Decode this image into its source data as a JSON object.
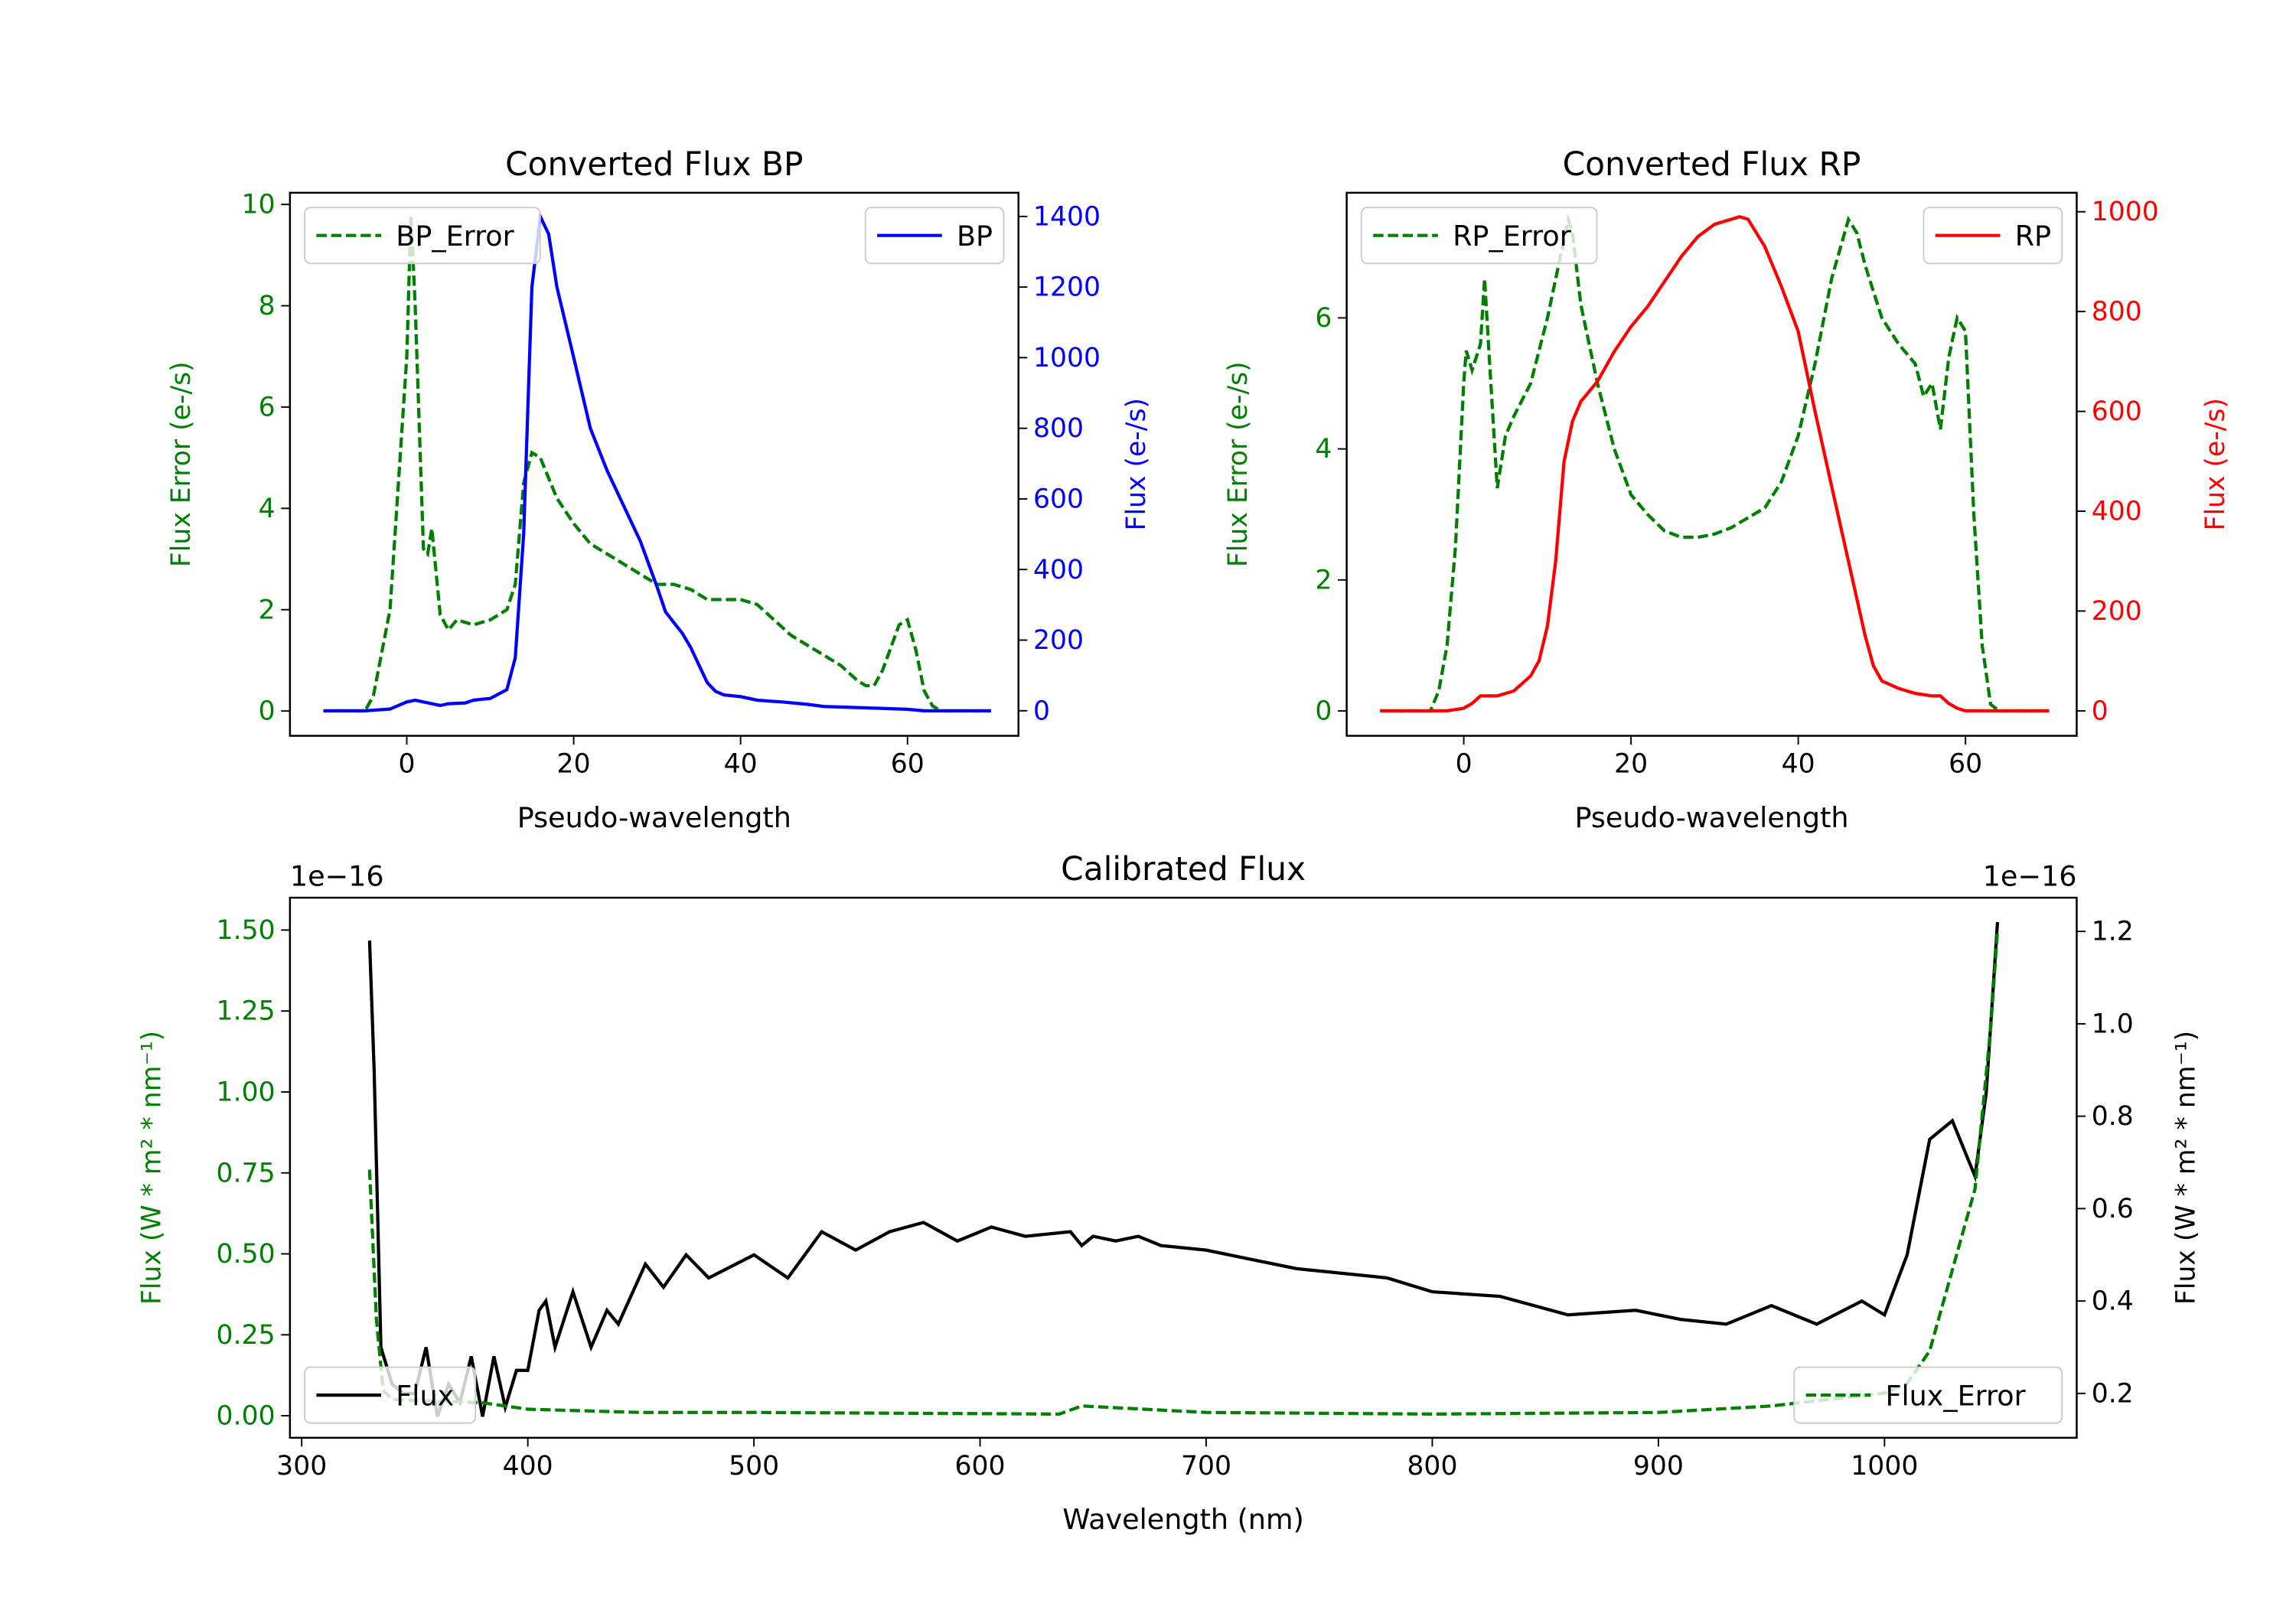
{
  "colors": {
    "green": "#008000",
    "blue": "#0000ff",
    "red": "#ff0000",
    "black": "#000000"
  },
  "chart_data": [
    {
      "id": "bp",
      "type": "line",
      "title": "Converted Flux BP",
      "xlabel": "Pseudo-wavelength",
      "xlim": [
        -14,
        73.3
      ],
      "xticks": [
        0,
        20,
        40,
        60
      ],
      "xtick_labels": [
        "0",
        "20",
        "40",
        "60"
      ],
      "left_axis": {
        "label": "Flux Error (e-/s)",
        "color": "#008000",
        "ylim": [
          -0.49,
          10.23
        ],
        "ticks": [
          0,
          2,
          4,
          6,
          8,
          10
        ],
        "tick_labels": [
          "0",
          "2",
          "4",
          "6",
          "8",
          "10"
        ]
      },
      "right_axis": {
        "label": "Flux (e-/s)",
        "color": "#0000ff",
        "ylim": [
          -71,
          1467
        ],
        "ticks": [
          0,
          200,
          400,
          600,
          800,
          1000,
          1200,
          1400
        ],
        "tick_labels": [
          "0",
          "200",
          "400",
          "600",
          "800",
          "1000",
          "1200",
          "1400"
        ]
      },
      "series": [
        {
          "name": "BP_Error",
          "axis": "left",
          "color": "#008000",
          "style": "dashed",
          "legend": "upper-left",
          "x": [
            -10,
            -5,
            -4,
            -2,
            0,
            0.5,
            1,
            2,
            2.5,
            3,
            4,
            5,
            6,
            8,
            10,
            12,
            13,
            14,
            15,
            16,
            18,
            20,
            22,
            24,
            26,
            28,
            30,
            32,
            34,
            36,
            38,
            40,
            42,
            44,
            46,
            48,
            50,
            52,
            54,
            55,
            56,
            57,
            59,
            60,
            61,
            62,
            63,
            64,
            70
          ],
          "y": [
            0,
            0,
            0.3,
            2,
            7,
            9.8,
            8,
            3.2,
            3.1,
            3.6,
            1.9,
            1.6,
            1.8,
            1.7,
            1.8,
            2.0,
            2.5,
            4.5,
            5.1,
            5.0,
            4.2,
            3.7,
            3.3,
            3.1,
            2.9,
            2.7,
            2.5,
            2.5,
            2.4,
            2.2,
            2.2,
            2.2,
            2.1,
            1.8,
            1.5,
            1.3,
            1.1,
            0.9,
            0.6,
            0.5,
            0.5,
            0.8,
            1.7,
            1.8,
            1.2,
            0.4,
            0.1,
            0,
            0
          ]
        },
        {
          "name": "BP",
          "axis": "right",
          "color": "#0000ff",
          "style": "solid",
          "legend": "upper-right",
          "x": [
            -10,
            -5,
            -2,
            0,
            1,
            2,
            3,
            4,
            5,
            7,
            8,
            10,
            12,
            13,
            14,
            15,
            16,
            17,
            18,
            20,
            22,
            24,
            26,
            28,
            30,
            31,
            32,
            33,
            34,
            36,
            37,
            38,
            40,
            42,
            45,
            48,
            50,
            55,
            60,
            62,
            70
          ],
          "y": [
            0,
            0,
            5,
            25,
            30,
            25,
            20,
            15,
            20,
            22,
            30,
            35,
            60,
            150,
            500,
            1200,
            1400,
            1350,
            1200,
            1000,
            800,
            680,
            580,
            480,
            350,
            280,
            250,
            220,
            180,
            80,
            55,
            45,
            40,
            30,
            25,
            18,
            12,
            8,
            4,
            0,
            0
          ]
        }
      ]
    },
    {
      "id": "rp",
      "type": "line",
      "title": "Converted Flux RP",
      "xlabel": "Pseudo-wavelength",
      "xlim": [
        -14,
        73.3
      ],
      "xticks": [
        0,
        20,
        40,
        60
      ],
      "xtick_labels": [
        "0",
        "20",
        "40",
        "60"
      ],
      "left_axis": {
        "label": "Flux Error (e-/s)",
        "color": "#008000",
        "ylim": [
          -0.38,
          7.91
        ],
        "ticks": [
          0,
          2,
          4,
          6
        ],
        "tick_labels": [
          "0",
          "2",
          "4",
          "6"
        ]
      },
      "right_axis": {
        "label": "Flux (e-/s)",
        "color": "#ff0000",
        "ylim": [
          -50,
          1038
        ],
        "ticks": [
          0,
          200,
          400,
          600,
          800,
          1000
        ],
        "tick_labels": [
          "0",
          "200",
          "400",
          "600",
          "800",
          "1000"
        ]
      },
      "series": [
        {
          "name": "RP_Error",
          "axis": "left",
          "color": "#008000",
          "style": "dashed",
          "legend": "upper-left",
          "x": [
            -10,
            -4,
            -3,
            -2,
            -1,
            0,
            0.3,
            1,
            2,
            2.5,
            3,
            4,
            5,
            6,
            8,
            10,
            12,
            12.5,
            13,
            14,
            16,
            18,
            20,
            22,
            24,
            26,
            28,
            30,
            32,
            34,
            36,
            38,
            40,
            42,
            44,
            46,
            47,
            48,
            50,
            52,
            54,
            55,
            56,
            57,
            58,
            59,
            60,
            61,
            62,
            63,
            64,
            70
          ],
          "y": [
            0,
            0,
            0.3,
            1,
            2.5,
            5,
            5.5,
            5.2,
            5.6,
            6.6,
            5.5,
            3.4,
            4.2,
            4.5,
            5,
            6,
            7.2,
            7.5,
            7.3,
            6.2,
            5.0,
            4.0,
            3.3,
            3.0,
            2.75,
            2.65,
            2.65,
            2.7,
            2.8,
            2.95,
            3.1,
            3.5,
            4.2,
            5.3,
            6.6,
            7.5,
            7.3,
            6.8,
            6.0,
            5.6,
            5.3,
            4.8,
            5.0,
            4.3,
            5.4,
            6.0,
            5.8,
            3.0,
            1.0,
            0.1,
            0,
            0
          ]
        },
        {
          "name": "RP",
          "axis": "right",
          "color": "#ff0000",
          "style": "solid",
          "legend": "upper-right",
          "x": [
            -10,
            -2,
            0,
            1,
            2,
            4,
            6,
            8,
            9,
            10,
            11,
            12,
            13,
            14,
            16,
            18,
            20,
            22,
            24,
            26,
            28,
            30,
            32,
            33,
            34,
            36,
            38,
            40,
            42,
            44,
            46,
            48,
            49,
            50,
            52,
            54,
            56,
            57,
            58,
            59,
            60,
            70
          ],
          "y": [
            0,
            0,
            5,
            15,
            30,
            30,
            40,
            70,
            100,
            170,
            300,
            500,
            580,
            620,
            660,
            720,
            770,
            810,
            860,
            910,
            950,
            975,
            985,
            990,
            985,
            930,
            850,
            760,
            600,
            450,
            300,
            150,
            90,
            60,
            45,
            35,
            30,
            30,
            15,
            5,
            0,
            0
          ]
        }
      ]
    },
    {
      "id": "cal",
      "type": "line",
      "title": "Calibrated Flux",
      "xlabel": "Wavelength (nm)",
      "xlim": [
        294.8,
        1085
      ],
      "xticks": [
        300,
        400,
        500,
        600,
        700,
        800,
        900,
        1000
      ],
      "xtick_labels": [
        "300",
        "400",
        "500",
        "600",
        "700",
        "800",
        "900",
        "1000"
      ],
      "left_axis": {
        "label": "Flux (W * m² * nm⁻¹)",
        "color": "#008000",
        "offset_text": "1e−16",
        "ylim": [
          -0.068,
          1.6
        ],
        "ticks": [
          0,
          0.25,
          0.5,
          0.75,
          1.0,
          1.25,
          1.5
        ],
        "tick_labels": [
          "0.00",
          "0.25",
          "0.50",
          "0.75",
          "1.00",
          "1.25",
          "1.50"
        ]
      },
      "right_axis": {
        "label": "Flux (W * m² * nm⁻¹)",
        "color": "#000000",
        "offset_text": "1e−16",
        "ylim": [
          0.104,
          1.273
        ],
        "ticks": [
          0.2,
          0.4,
          0.6,
          0.8,
          1.0,
          1.2
        ],
        "tick_labels": [
          "0.2",
          "0.4",
          "0.6",
          "0.8",
          "1.0",
          "1.2"
        ]
      },
      "series": [
        {
          "name": "Flux",
          "axis": "right",
          "color": "#000000",
          "style": "solid",
          "legend": "lower-left",
          "x": [
            330,
            332,
            335,
            340,
            345,
            350,
            355,
            360,
            365,
            370,
            375,
            380,
            385,
            390,
            395,
            400,
            405,
            408,
            412,
            420,
            428,
            435,
            440,
            452,
            460,
            470,
            480,
            500,
            515,
            530,
            545,
            560,
            575,
            590,
            605,
            620,
            640,
            645,
            650,
            660,
            670,
            680,
            700,
            720,
            740,
            760,
            780,
            800,
            830,
            860,
            890,
            910,
            930,
            950,
            970,
            990,
            1000,
            1010,
            1020,
            1030,
            1040,
            1045,
            1050
          ],
          "y": [
            1.18,
            0.9,
            0.3,
            0.22,
            0.2,
            0.2,
            0.3,
            0.15,
            0.22,
            0.18,
            0.28,
            0.15,
            0.28,
            0.17,
            0.25,
            0.25,
            0.38,
            0.4,
            0.3,
            0.42,
            0.3,
            0.38,
            0.35,
            0.48,
            0.43,
            0.5,
            0.45,
            0.5,
            0.45,
            0.55,
            0.51,
            0.55,
            0.57,
            0.53,
            0.56,
            0.54,
            0.55,
            0.52,
            0.54,
            0.53,
            0.54,
            0.52,
            0.51,
            0.49,
            0.47,
            0.46,
            0.45,
            0.42,
            0.41,
            0.37,
            0.38,
            0.36,
            0.35,
            0.39,
            0.35,
            0.4,
            0.37,
            0.5,
            0.75,
            0.79,
            0.67,
            0.85,
            1.22
          ]
        },
        {
          "name": "Flux_Error",
          "axis": "left",
          "color": "#008000",
          "style": "dashed",
          "legend": "lower-right",
          "x": [
            330,
            333,
            336,
            340,
            380,
            400,
            450,
            500,
            635,
            645,
            700,
            800,
            900,
            950,
            1000,
            1010,
            1020,
            1030,
            1040,
            1047,
            1050
          ],
          "y": [
            0.76,
            0.3,
            0.08,
            0.05,
            0.04,
            0.02,
            0.01,
            0.01,
            0.005,
            0.03,
            0.01,
            0.005,
            0.01,
            0.03,
            0.07,
            0.1,
            0.2,
            0.45,
            0.7,
            1.2,
            1.5
          ]
        }
      ]
    }
  ]
}
